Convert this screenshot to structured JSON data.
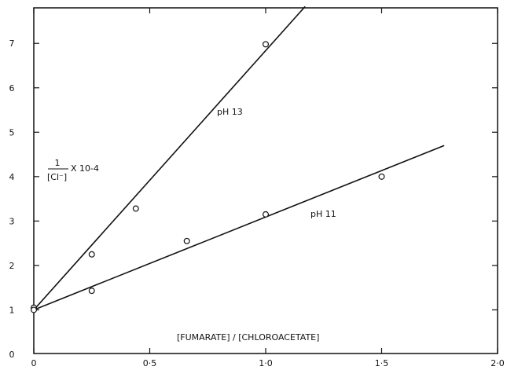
{
  "chart_data": {
    "type": "scatter",
    "title": "",
    "xlabel": "[FUMARATE] / [CHLOROACETATE]",
    "ylabel_numerator": "1",
    "ylabel_denominator": "[Cl⁻]",
    "ylabel_multiplier": "X 10-4",
    "xlim": [
      0,
      2.0
    ],
    "ylim": [
      0,
      7.8
    ],
    "x_ticks": [
      {
        "value": 0,
        "label": "0"
      },
      {
        "value": 0.5,
        "label": "0·5"
      },
      {
        "value": 1.0,
        "label": "1·0"
      },
      {
        "value": 1.5,
        "label": "1·5"
      },
      {
        "value": 2.0,
        "label": "2·0"
      }
    ],
    "y_ticks": [
      {
        "value": 0,
        "label": "0"
      },
      {
        "value": 1,
        "label": "1"
      },
      {
        "value": 2,
        "label": "2"
      },
      {
        "value": 3,
        "label": "3"
      },
      {
        "value": 4,
        "label": "4"
      },
      {
        "value": 5,
        "label": "5"
      },
      {
        "value": 6,
        "label": "6"
      },
      {
        "value": 7,
        "label": "7"
      }
    ],
    "grid": false,
    "series": [
      {
        "name": "pH 13",
        "points": [
          [
            0,
            1.05
          ],
          [
            0.25,
            2.25
          ],
          [
            0.44,
            3.28
          ],
          [
            1.0,
            6.98
          ]
        ],
        "fit_line": [
          [
            0,
            1.0
          ],
          [
            1.17,
            7.83
          ]
        ]
      },
      {
        "name": "pH 11",
        "points": [
          [
            0,
            1.0
          ],
          [
            0.25,
            1.43
          ],
          [
            0.66,
            2.55
          ],
          [
            1.0,
            3.15
          ],
          [
            1.5,
            4.0
          ]
        ],
        "fit_line": [
          [
            0,
            1.0
          ],
          [
            1.77,
            4.7
          ]
        ]
      }
    ]
  }
}
